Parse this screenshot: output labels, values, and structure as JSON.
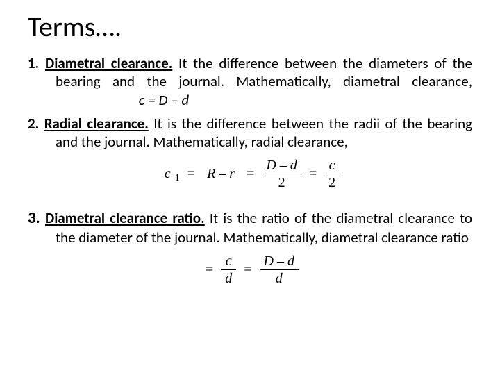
{
  "slide": {
    "title": "Terms….",
    "title_fontsize": 40,
    "body_fontsize": 21,
    "text_color": "#000000",
    "background_color": "#ffffff",
    "font_family": "Calibri"
  },
  "items": [
    {
      "number": "1.",
      "term": "Diametral clearance.",
      "term_style": {
        "bold": true,
        "underline": true
      },
      "text_a": " It the difference between the diameters of the bearing and the journal. Mathematically, diametral clearance,",
      "inline_formula": "c = D – d",
      "inline_formula_style": {
        "italic": true
      }
    },
    {
      "number": "2.",
      "term": "Radial clearance.",
      "term_style": {
        "bold": true,
        "underline": true
      },
      "text_a": " It is the difference between the radii of the bearing and the journal. Mathematically, radial clearance,",
      "formula": {
        "type": "equation_chain",
        "lhs_var": "c",
        "lhs_sub": "1",
        "rhs1": {
          "type": "expr",
          "text": "R – r"
        },
        "rhs2": {
          "type": "fraction",
          "num": "D – d",
          "den": "2"
        },
        "rhs3": {
          "type": "fraction",
          "num": "c",
          "den": "2"
        },
        "font_family": "Cambria Math",
        "fontsize": 20,
        "color": "#000000"
      }
    },
    {
      "number": "3.",
      "number_fontsize": 23,
      "term": "Diametral clearance ratio.",
      "term_style": {
        "bold": true,
        "underline": true
      },
      "text_a": " It is the ratio of the diametral clearance to the diameter of the journal. Mathematically, diametral clearance ratio",
      "formula": {
        "type": "equation_chain_noLHS",
        "rhs1": {
          "type": "fraction",
          "num": "c",
          "den": "d"
        },
        "rhs2": {
          "type": "fraction",
          "num": "D – d",
          "den": "d"
        },
        "font_family": "Cambria Math",
        "fontsize": 20,
        "color": "#000000"
      }
    }
  ]
}
